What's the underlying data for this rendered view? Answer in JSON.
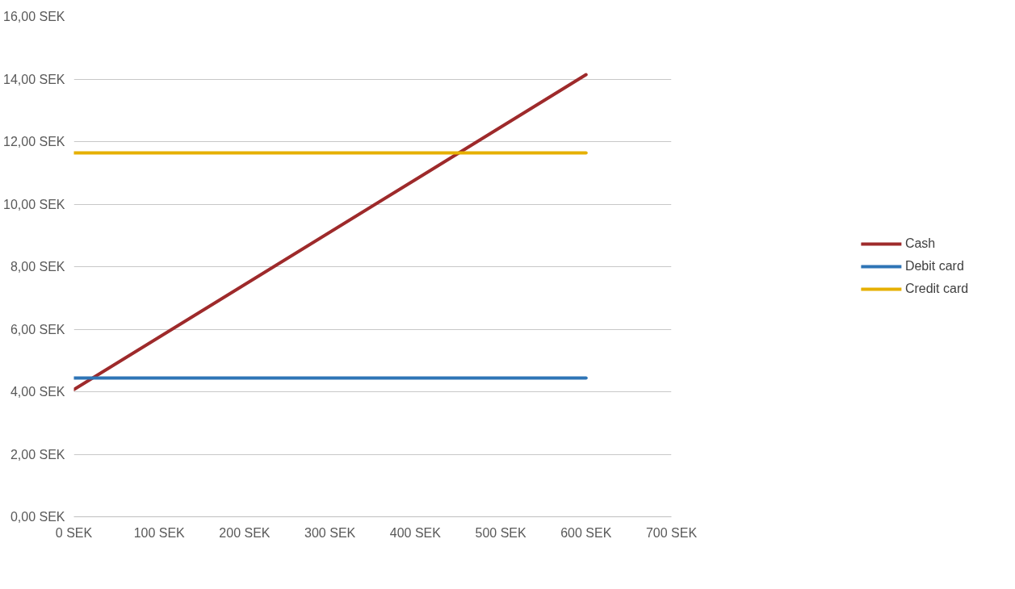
{
  "chart_data": {
    "type": "line",
    "x": [
      0,
      600
    ],
    "series": [
      {
        "name": "Cash",
        "color": "#9e2a2b",
        "values": [
          4.07,
          14.14
        ]
      },
      {
        "name": "Debit card",
        "color": "#2e75b6",
        "values": [
          4.44,
          4.44
        ]
      },
      {
        "name": "Credit card",
        "color": "#e6b000",
        "values": [
          11.64,
          11.64
        ]
      }
    ],
    "xlim": [
      0,
      700
    ],
    "ylim": [
      0,
      16
    ],
    "xticks": [
      {
        "value": 0,
        "label": "0 SEK"
      },
      {
        "value": 100,
        "label": "100 SEK"
      },
      {
        "value": 200,
        "label": "200 SEK"
      },
      {
        "value": 300,
        "label": "300 SEK"
      },
      {
        "value": 400,
        "label": "400 SEK"
      },
      {
        "value": 500,
        "label": "500 SEK"
      },
      {
        "value": 600,
        "label": "600 SEK"
      },
      {
        "value": 700,
        "label": "700 SEK"
      }
    ],
    "yticks": [
      {
        "value": 0,
        "label": "0,00 SEK"
      },
      {
        "value": 2,
        "label": "2,00 SEK"
      },
      {
        "value": 4,
        "label": "4,00 SEK"
      },
      {
        "value": 6,
        "label": "6,00 SEK"
      },
      {
        "value": 8,
        "label": "8,00 SEK"
      },
      {
        "value": 10,
        "label": "10,00 SEK"
      },
      {
        "value": 12,
        "label": "12,00 SEK"
      },
      {
        "value": 14,
        "label": "14,00 SEK"
      },
      {
        "value": 16,
        "label": "16,00 SEK"
      }
    ],
    "grid": "y",
    "legend": "right",
    "marker": "none",
    "line_style": "solid"
  }
}
